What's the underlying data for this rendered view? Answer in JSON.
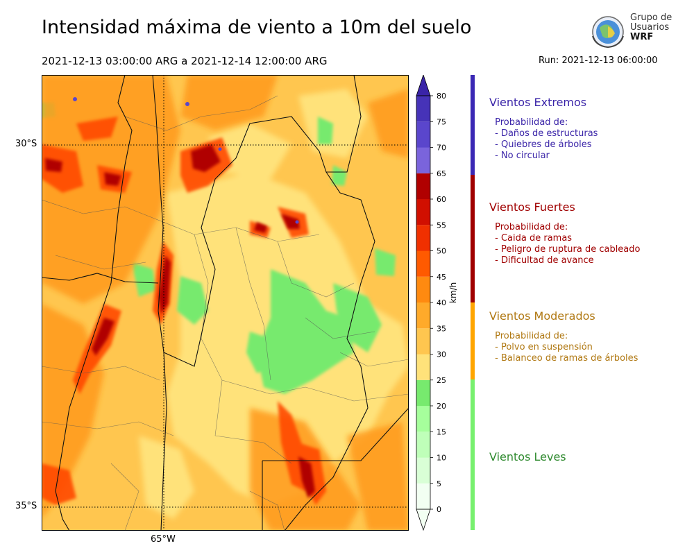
{
  "title": "Intensidad máxima de viento a 10m del suelo",
  "period": "2021-12-13 03:00:00 ARG  a  2021-12-14 12:00:00 ARG",
  "run": "Run: 2021-12-13 06:00:00",
  "logo": {
    "line1": "Grupo de",
    "line2": "Usuarios",
    "line3": "WRF"
  },
  "map": {
    "lat_labels": [
      "30°S",
      "35°S"
    ],
    "lon_labels": [
      "65°W"
    ]
  },
  "colorbar": {
    "unit": "km/h",
    "ticks": [
      "0",
      "5",
      "10",
      "15",
      "20",
      "25",
      "30",
      "35",
      "40",
      "45",
      "50",
      "55",
      "60",
      "65",
      "70",
      "75",
      "80"
    ],
    "colors": [
      "#f2fff2",
      "#d9ffd6",
      "#bfffb9",
      "#a6ff9c",
      "#8cf583",
      "#77ea6e",
      "#ffe27a",
      "#ffc64f",
      "#ffaa2a",
      "#ff8a10",
      "#ff5a00",
      "#f03000",
      "#d10f00",
      "#b00000",
      "#940000",
      "#7a64dc",
      "#5a46cc",
      "#4633b8",
      "#3a24a8"
    ]
  },
  "categories": [
    {
      "title": "Vientos Extremos",
      "color": "#3a24a8",
      "desc": " Probabilidad de:\n - Daños de estructuras\n - Quiebres de árboles\n - No circular"
    },
    {
      "title": "Vientos Fuertes",
      "color": "#a00000",
      "desc": " Probabilidad de:\n - Caida de ramas\n - Peligro de ruptura de cableado\n - Dificultad de avance"
    },
    {
      "title": "Vientos Moderados",
      "color": "#b07812",
      "desc": " Probabilidad de:\n - Polvo en suspensión\n - Balanceo de ramas de árboles"
    },
    {
      "title": "Vientos Leves",
      "color": "#2f8a2f",
      "desc": ""
    }
  ],
  "category_bar_colors": [
    "#3a28b4",
    "#a00000",
    "#ffa500",
    "#77f06e"
  ]
}
